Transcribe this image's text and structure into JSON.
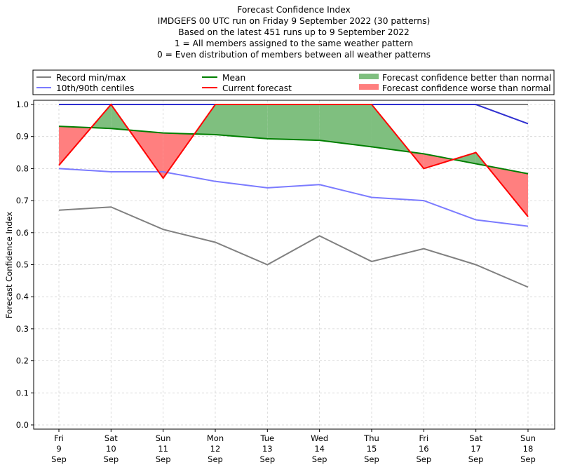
{
  "chart_data": {
    "type": "line",
    "title_lines": [
      "Forecast Confidence Index",
      "IMDGEFS 00 UTC run on Friday 9 September 2022 (30 patterns)",
      "Based on the latest 451 runs up to 9 September 2022",
      "1 = All members assigned to the same weather pattern",
      "0 = Even distribution of members between all weather patterns"
    ],
    "xlabel": "",
    "ylabel": "Forecast Confidence Index",
    "ylim": [
      -0.01,
      1.015
    ],
    "yticks": [
      "0.0",
      "0.1",
      "0.2",
      "0.3",
      "0.4",
      "0.5",
      "0.6",
      "0.7",
      "0.8",
      "0.9",
      "1.0"
    ],
    "ytick_values": [
      0,
      0.1,
      0.2,
      0.3,
      0.4,
      0.5,
      0.6,
      0.7,
      0.8,
      0.9,
      1.0
    ],
    "grid": true,
    "legend_placement": "top",
    "categories": [
      [
        "Fri",
        "9",
        "Sep"
      ],
      [
        "Sat",
        "10",
        "Sep"
      ],
      [
        "Sun",
        "11",
        "Sep"
      ],
      [
        "Mon",
        "12",
        "Sep"
      ],
      [
        "Tue",
        "13",
        "Sep"
      ],
      [
        "Wed",
        "14",
        "Sep"
      ],
      [
        "Thu",
        "15",
        "Sep"
      ],
      [
        "Fri",
        "16",
        "Sep"
      ],
      [
        "Sat",
        "17",
        "Sep"
      ],
      [
        "Sun",
        "18",
        "Sep"
      ]
    ],
    "series": [
      {
        "key": "record_max",
        "name": "Record min/max",
        "color": "#808080",
        "values": [
          1.0,
          1.0,
          1.0,
          1.0,
          1.0,
          1.0,
          1.0,
          1.0,
          1.0,
          1.0
        ]
      },
      {
        "key": "record_min",
        "name": "Record min/max",
        "color": "#808080",
        "values": [
          0.67,
          0.68,
          0.61,
          0.57,
          0.5,
          0.59,
          0.51,
          0.55,
          0.5,
          0.43
        ]
      },
      {
        "key": "p90",
        "name": "10th/90th centiles",
        "color": "#7b7bff",
        "values": [
          1.0,
          1.0,
          1.0,
          1.0,
          1.0,
          1.0,
          1.0,
          1.0,
          1.0,
          0.94
        ]
      },
      {
        "key": "p10",
        "name": "10th/90th centiles",
        "color": "#7b7bff",
        "values": [
          0.8,
          0.79,
          0.79,
          0.76,
          0.74,
          0.75,
          0.71,
          0.7,
          0.64,
          0.62
        ]
      },
      {
        "key": "mean",
        "name": "Mean",
        "color": "#007f00",
        "values": [
          0.932,
          0.925,
          0.911,
          0.906,
          0.893,
          0.888,
          0.868,
          0.846,
          0.815,
          0.784
        ]
      },
      {
        "key": "current",
        "name": "Current forecast",
        "color": "#ff0000",
        "values": [
          0.81,
          1.0,
          0.77,
          1.0,
          1.0,
          1.0,
          1.0,
          0.8,
          0.85,
          0.65
        ]
      }
    ],
    "fills": {
      "better": {
        "name": "Forecast confidence better than normal",
        "color": "#7fbf7f"
      },
      "worse": {
        "name": "Forecast confidence worse than normal",
        "color": "#ff7f7f"
      }
    },
    "legend": [
      {
        "label": "Record min/max",
        "color": "#808080",
        "kind": "line"
      },
      {
        "label": "10th/90th centiles",
        "color": "#7b7bff",
        "kind": "line"
      },
      {
        "label": "Mean",
        "color": "#007f00",
        "kind": "line"
      },
      {
        "label": "Current forecast",
        "color": "#ff0000",
        "kind": "line"
      },
      {
        "label": "Forecast confidence better than normal",
        "color": "#7fbf7f",
        "kind": "patch"
      },
      {
        "label": "Forecast confidence worse than normal",
        "color": "#ff7f7f",
        "kind": "patch"
      }
    ]
  }
}
